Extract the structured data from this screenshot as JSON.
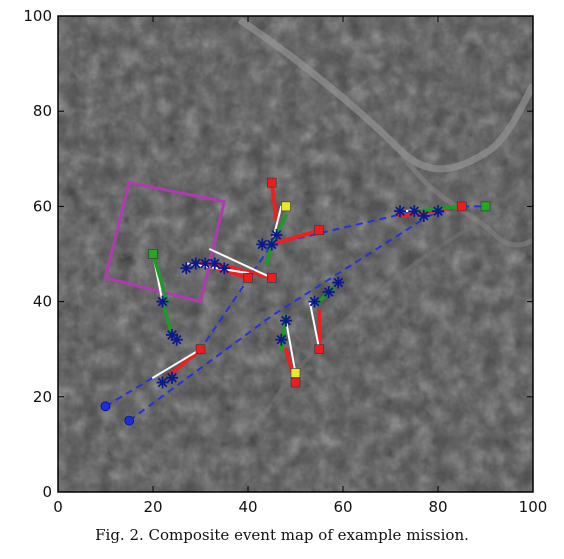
{
  "caption": "Fig. 2.   Composite event map of example mission.",
  "chart_data": {
    "type": "scatter",
    "title": "",
    "xlabel": "",
    "ylabel": "",
    "xlim": [
      0,
      100
    ],
    "ylim": [
      0,
      100
    ],
    "xticks": [
      0,
      20,
      40,
      60,
      80,
      100
    ],
    "yticks": [
      0,
      20,
      40,
      60,
      80,
      100
    ],
    "x_tick_labels": [
      "0",
      "20",
      "40",
      "60",
      "80",
      "100"
    ],
    "y_tick_labels": [
      "0",
      "20",
      "40",
      "60",
      "80",
      "100"
    ],
    "grid": false,
    "background": "grayscale satellite image",
    "search_region": [
      [
        15,
        65
      ],
      [
        35,
        61
      ],
      [
        30,
        40
      ],
      [
        10,
        45
      ]
    ],
    "start_points": [
      [
        10,
        18
      ],
      [
        15,
        15
      ]
    ],
    "planned_paths": [
      [
        [
          10,
          18
        ],
        [
          30,
          30
        ],
        [
          45,
          52
        ],
        [
          75,
          59
        ],
        [
          85,
          60
        ],
        [
          90,
          60
        ]
      ],
      [
        [
          15,
          15
        ],
        [
          45,
          37
        ],
        [
          78,
          58
        ],
        [
          85,
          60
        ]
      ]
    ],
    "green_markers": [
      [
        20,
        50
      ],
      [
        90,
        60
      ]
    ],
    "yellow_markers": [
      [
        48,
        60
      ],
      [
        50,
        25
      ]
    ],
    "red_markers": [
      [
        45,
        65
      ],
      [
        55,
        55
      ],
      [
        40,
        45
      ],
      [
        45,
        45
      ],
      [
        30,
        30
      ],
      [
        55,
        30
      ],
      [
        50,
        23
      ],
      [
        85,
        60
      ]
    ],
    "red_segments": [
      [
        [
          45,
          65
        ],
        [
          46,
          57
        ]
      ],
      [
        [
          45,
          52
        ],
        [
          55,
          55
        ]
      ],
      [
        [
          30,
          48
        ],
        [
          40,
          45
        ]
      ],
      [
        [
          33,
          48
        ],
        [
          45,
          45
        ]
      ],
      [
        [
          24,
          25
        ],
        [
          30,
          30
        ]
      ],
      [
        [
          55,
          38
        ],
        [
          55,
          30
        ]
      ],
      [
        [
          48,
          30
        ],
        [
          50,
          23
        ]
      ],
      [
        [
          72,
          58
        ],
        [
          85,
          60
        ]
      ]
    ],
    "white_segments": [
      [
        [
          20,
          50
        ],
        [
          22,
          40
        ]
      ],
      [
        [
          32,
          51
        ],
        [
          45,
          45
        ]
      ],
      [
        [
          20,
          24
        ],
        [
          30,
          30
        ]
      ],
      [
        [
          47,
          60
        ],
        [
          45,
          52
        ]
      ],
      [
        [
          53,
          40
        ],
        [
          55,
          30
        ]
      ],
      [
        [
          48,
          36
        ],
        [
          50,
          25
        ]
      ],
      [
        [
          73,
          59
        ],
        [
          85,
          60
        ]
      ],
      [
        [
          27,
          48
        ],
        [
          40,
          46
        ]
      ]
    ],
    "green_segments": [
      [
        [
          20,
          50
        ],
        [
          23,
          40
        ]
      ],
      [
        [
          22,
          40
        ],
        [
          24,
          33
        ]
      ],
      [
        [
          45,
          52
        ],
        [
          48,
          58
        ]
      ],
      [
        [
          48,
          37
        ],
        [
          47,
          30
        ]
      ],
      [
        [
          55,
          40
        ],
        [
          58,
          43
        ]
      ],
      [
        [
          75,
          59
        ],
        [
          85,
          60
        ]
      ],
      [
        [
          45,
          52
        ],
        [
          44,
          48
        ]
      ]
    ],
    "event_points": [
      [
        22,
        40
      ],
      [
        24,
        33
      ],
      [
        25,
        32
      ],
      [
        27,
        47
      ],
      [
        29,
        48
      ],
      [
        31,
        48
      ],
      [
        33,
        48
      ],
      [
        35,
        47
      ],
      [
        43,
        52
      ],
      [
        45,
        52
      ],
      [
        46,
        54
      ],
      [
        22,
        23
      ],
      [
        24,
        24
      ],
      [
        48,
        36
      ],
      [
        47,
        32
      ],
      [
        54,
        40
      ],
      [
        57,
        42
      ],
      [
        59,
        44
      ],
      [
        72,
        59
      ],
      [
        75,
        59
      ],
      [
        77,
        58
      ],
      [
        80,
        59
      ]
    ]
  }
}
